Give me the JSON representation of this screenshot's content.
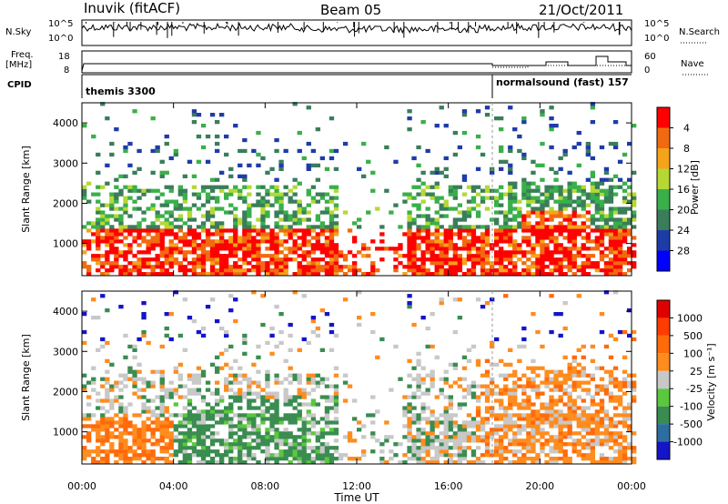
{
  "header": {
    "station": "Inuvik (fitACF)",
    "beam": "Beam 05",
    "date": "21/Oct/2011"
  },
  "strips": {
    "nsky_label": "N.Sky",
    "nsky_ticks": [
      "10^5",
      "10^0"
    ],
    "nsearch_label": "N.Search",
    "nsearch_ticks": [
      "10^5",
      "10^0"
    ],
    "freq_label": "Freq.",
    "freq_unit": "[MHz]",
    "freq_ticks": [
      "18",
      "8"
    ],
    "nave_label": "Nave",
    "nave_ticks": [
      "60",
      "0"
    ],
    "cpid_label": "CPID",
    "cpid_modes": [
      {
        "name": "themis 3300",
        "start_hour": 0
      },
      {
        "name": "normalsound (fast) 157",
        "start_hour": 18
      }
    ]
  },
  "chart_data": [
    {
      "type": "heatmap",
      "quantity": "Power",
      "x": {
        "label": "Time UT",
        "range_hours": [
          0,
          24
        ],
        "ticks": [
          "00:00",
          "04:00",
          "08:00",
          "12:00",
          "16:00",
          "20:00",
          "00:00"
        ]
      },
      "y": {
        "label": "Slant Range [km]",
        "range": [
          200,
          4500
        ],
        "ticks": [
          "1000",
          "2000",
          "3000",
          "4000"
        ]
      },
      "colorbar": {
        "label": "Power [dB]",
        "ticks": [
          "4",
          "8",
          "12",
          "16",
          "20",
          "24",
          "28"
        ],
        "range": [
          0,
          32
        ]
      },
      "mode_boundary_hour": 18
    },
    {
      "type": "heatmap",
      "quantity": "Velocity",
      "x": {
        "label": "Time UT",
        "range_hours": [
          0,
          24
        ],
        "ticks": [
          "00:00",
          "04:00",
          "08:00",
          "12:00",
          "16:00",
          "20:00",
          "00:00"
        ]
      },
      "y": {
        "label": "Slant Range [km]",
        "range": [
          200,
          4500
        ],
        "ticks": [
          "1000",
          "2000",
          "3000",
          "4000"
        ]
      },
      "colorbar": {
        "label": "Velocity [m s⁻¹]",
        "ticks": [
          "1000",
          "500",
          "100",
          "25",
          "-25",
          "-100",
          "-500",
          "-1000"
        ]
      },
      "mode_boundary_hour": 18
    }
  ],
  "xaxis": {
    "label": "Time UT",
    "ticks": [
      "00:00",
      "04:00",
      "08:00",
      "12:00",
      "16:00",
      "20:00",
      "00:00"
    ]
  },
  "colors": {
    "power": [
      "#0000ff",
      "#1e3ca8",
      "#3a7d5a",
      "#39b04a",
      "#b5d835",
      "#f5a31a",
      "#f26a10",
      "#ff0000"
    ],
    "velocity": [
      "#1414c8",
      "#2d6ea0",
      "#3a8c50",
      "#5ac83c",
      "#c8c8c8",
      "#ff8c1e",
      "#ff6a0a",
      "#ff3c00",
      "#e10000"
    ]
  }
}
